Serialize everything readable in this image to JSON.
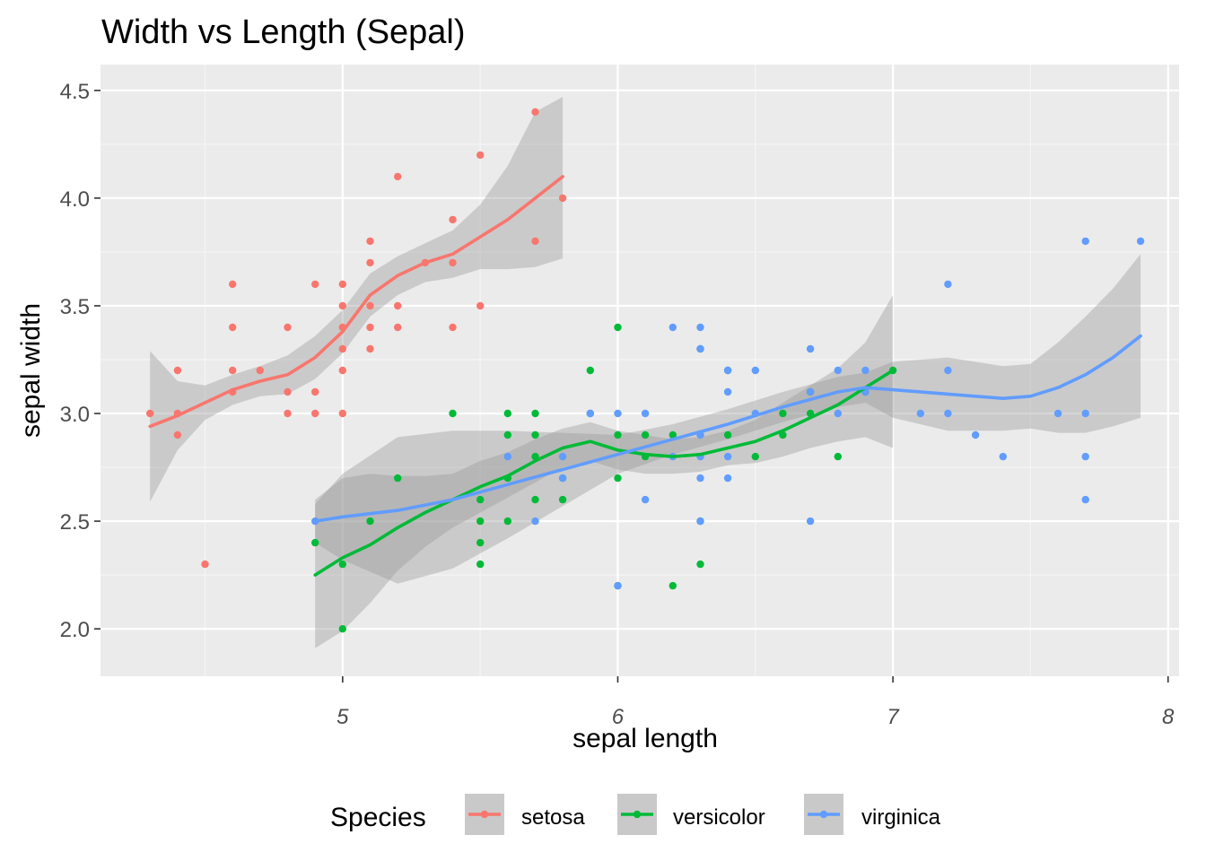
{
  "chart_data": {
    "type": "scatter",
    "title": "Width vs Length (Sepal)",
    "xlabel": "sepal length",
    "ylabel": "sepal width",
    "xlim": [
      4.12,
      8.04
    ],
    "ylim": [
      1.78,
      4.62
    ],
    "x_ticks": [
      5,
      6,
      7,
      8
    ],
    "x_tick_labels": [
      "5",
      "6",
      "7",
      "8"
    ],
    "y_ticks": [
      2.0,
      2.5,
      3.0,
      3.5,
      4.0,
      4.5
    ],
    "y_tick_labels": [
      "2.0",
      "2.5",
      "3.0",
      "3.5",
      "4.0",
      "4.5"
    ],
    "grid": true,
    "legend": {
      "title": "Species",
      "position": "bottom"
    },
    "series": [
      {
        "name": "setosa",
        "color": "#F8766D",
        "points": [
          [
            4.3,
            3.0
          ],
          [
            4.4,
            3.2
          ],
          [
            4.4,
            3.0
          ],
          [
            4.4,
            2.9
          ],
          [
            4.5,
            2.3
          ],
          [
            4.6,
            3.6
          ],
          [
            4.6,
            3.4
          ],
          [
            4.6,
            3.2
          ],
          [
            4.6,
            3.1
          ],
          [
            4.7,
            3.2
          ],
          [
            4.8,
            3.4
          ],
          [
            4.8,
            3.1
          ],
          [
            4.8,
            3.0
          ],
          [
            4.9,
            3.6
          ],
          [
            4.9,
            3.1
          ],
          [
            4.9,
            3.0
          ],
          [
            5.0,
            3.6
          ],
          [
            5.0,
            3.5
          ],
          [
            5.0,
            3.4
          ],
          [
            5.0,
            3.3
          ],
          [
            5.0,
            3.2
          ],
          [
            5.0,
            3.0
          ],
          [
            5.1,
            3.8
          ],
          [
            5.1,
            3.7
          ],
          [
            5.1,
            3.5
          ],
          [
            5.1,
            3.4
          ],
          [
            5.1,
            3.3
          ],
          [
            5.2,
            4.1
          ],
          [
            5.2,
            3.5
          ],
          [
            5.2,
            3.4
          ],
          [
            5.3,
            3.7
          ],
          [
            5.4,
            3.9
          ],
          [
            5.4,
            3.7
          ],
          [
            5.4,
            3.4
          ],
          [
            5.5,
            4.2
          ],
          [
            5.5,
            3.5
          ],
          [
            5.7,
            4.4
          ],
          [
            5.7,
            3.8
          ],
          [
            5.8,
            4.0
          ]
        ],
        "smooth": [
          [
            4.3,
            2.94
          ],
          [
            4.4,
            2.99
          ],
          [
            4.5,
            3.05
          ],
          [
            4.6,
            3.11
          ],
          [
            4.7,
            3.15
          ],
          [
            4.8,
            3.18
          ],
          [
            4.9,
            3.26
          ],
          [
            5.0,
            3.38
          ],
          [
            5.1,
            3.55
          ],
          [
            5.2,
            3.64
          ],
          [
            5.3,
            3.7
          ],
          [
            5.4,
            3.74
          ],
          [
            5.5,
            3.82
          ],
          [
            5.6,
            3.9
          ],
          [
            5.7,
            4.0
          ],
          [
            5.8,
            4.1
          ]
        ],
        "band_upper": [
          [
            4.3,
            3.29
          ],
          [
            4.4,
            3.15
          ],
          [
            4.5,
            3.13
          ],
          [
            4.6,
            3.18
          ],
          [
            4.7,
            3.22
          ],
          [
            4.8,
            3.27
          ],
          [
            4.9,
            3.36
          ],
          [
            5.0,
            3.48
          ],
          [
            5.1,
            3.65
          ],
          [
            5.2,
            3.73
          ],
          [
            5.3,
            3.79
          ],
          [
            5.4,
            3.85
          ],
          [
            5.5,
            3.97
          ],
          [
            5.6,
            4.15
          ],
          [
            5.7,
            4.4
          ],
          [
            5.8,
            4.47
          ]
        ],
        "band_lower": [
          [
            4.3,
            2.59
          ],
          [
            4.4,
            2.83
          ],
          [
            4.5,
            2.97
          ],
          [
            4.6,
            3.04
          ],
          [
            4.7,
            3.08
          ],
          [
            4.8,
            3.09
          ],
          [
            4.9,
            3.16
          ],
          [
            5.0,
            3.28
          ],
          [
            5.1,
            3.45
          ],
          [
            5.2,
            3.55
          ],
          [
            5.3,
            3.61
          ],
          [
            5.4,
            3.63
          ],
          [
            5.5,
            3.67
          ],
          [
            5.6,
            3.67
          ],
          [
            5.7,
            3.68
          ],
          [
            5.8,
            3.72
          ]
        ]
      },
      {
        "name": "versicolor",
        "color": "#00BA38",
        "points": [
          [
            4.9,
            2.4
          ],
          [
            5.0,
            2.3
          ],
          [
            5.0,
            2.0
          ],
          [
            5.1,
            2.5
          ],
          [
            5.2,
            2.7
          ],
          [
            5.4,
            3.0
          ],
          [
            5.5,
            2.6
          ],
          [
            5.5,
            2.5
          ],
          [
            5.5,
            2.4
          ],
          [
            5.5,
            2.3
          ],
          [
            5.6,
            3.0
          ],
          [
            5.6,
            2.9
          ],
          [
            5.6,
            2.7
          ],
          [
            5.6,
            2.5
          ],
          [
            5.7,
            3.0
          ],
          [
            5.7,
            2.9
          ],
          [
            5.7,
            2.8
          ],
          [
            5.7,
            2.6
          ],
          [
            5.8,
            2.7
          ],
          [
            5.8,
            2.6
          ],
          [
            5.9,
            3.2
          ],
          [
            5.9,
            3.0
          ],
          [
            6.0,
            3.4
          ],
          [
            6.0,
            2.9
          ],
          [
            6.0,
            2.7
          ],
          [
            6.0,
            2.2
          ],
          [
            6.1,
            2.9
          ],
          [
            6.1,
            2.8
          ],
          [
            6.2,
            2.9
          ],
          [
            6.2,
            2.2
          ],
          [
            6.3,
            2.5
          ],
          [
            6.3,
            2.3
          ],
          [
            6.3,
            3.3
          ],
          [
            6.4,
            3.2
          ],
          [
            6.4,
            2.9
          ],
          [
            6.5,
            2.8
          ],
          [
            6.6,
            3.0
          ],
          [
            6.6,
            2.9
          ],
          [
            6.7,
            3.1
          ],
          [
            6.7,
            3.0
          ],
          [
            6.8,
            2.8
          ],
          [
            6.9,
            3.1
          ],
          [
            7.0,
            3.2
          ]
        ],
        "smooth": [
          [
            4.9,
            2.25
          ],
          [
            5.0,
            2.33
          ],
          [
            5.1,
            2.39
          ],
          [
            5.2,
            2.47
          ],
          [
            5.3,
            2.54
          ],
          [
            5.4,
            2.6
          ],
          [
            5.5,
            2.66
          ],
          [
            5.6,
            2.71
          ],
          [
            5.7,
            2.78
          ],
          [
            5.8,
            2.84
          ],
          [
            5.9,
            2.87
          ],
          [
            6.0,
            2.83
          ],
          [
            6.1,
            2.81
          ],
          [
            6.2,
            2.8
          ],
          [
            6.3,
            2.81
          ],
          [
            6.4,
            2.84
          ],
          [
            6.5,
            2.87
          ],
          [
            6.6,
            2.92
          ],
          [
            6.7,
            2.98
          ],
          [
            6.8,
            3.04
          ],
          [
            6.9,
            3.12
          ],
          [
            7.0,
            3.2
          ]
        ],
        "band_upper": [
          [
            4.9,
            2.6
          ],
          [
            5.0,
            2.7
          ],
          [
            5.1,
            2.72
          ],
          [
            5.2,
            2.71
          ],
          [
            5.3,
            2.71
          ],
          [
            5.4,
            2.72
          ],
          [
            5.5,
            2.78
          ],
          [
            5.6,
            2.82
          ],
          [
            5.7,
            2.88
          ],
          [
            5.8,
            2.93
          ],
          [
            5.9,
            2.96
          ],
          [
            6.0,
            2.92
          ],
          [
            6.1,
            2.9
          ],
          [
            6.2,
            2.88
          ],
          [
            6.3,
            2.89
          ],
          [
            6.4,
            2.92
          ],
          [
            6.5,
            2.97
          ],
          [
            6.6,
            3.05
          ],
          [
            6.7,
            3.13
          ],
          [
            6.8,
            3.21
          ],
          [
            6.9,
            3.33
          ],
          [
            7.0,
            3.55
          ]
        ],
        "band_lower": [
          [
            4.9,
            1.91
          ],
          [
            5.0,
            1.99
          ],
          [
            5.1,
            2.12
          ],
          [
            5.2,
            2.27
          ],
          [
            5.3,
            2.38
          ],
          [
            5.4,
            2.47
          ],
          [
            5.5,
            2.54
          ],
          [
            5.6,
            2.61
          ],
          [
            5.7,
            2.68
          ],
          [
            5.8,
            2.75
          ],
          [
            5.9,
            2.78
          ],
          [
            6.0,
            2.74
          ],
          [
            6.1,
            2.72
          ],
          [
            6.2,
            2.72
          ],
          [
            6.3,
            2.73
          ],
          [
            6.4,
            2.76
          ],
          [
            6.5,
            2.77
          ],
          [
            6.6,
            2.8
          ],
          [
            6.7,
            2.84
          ],
          [
            6.8,
            2.87
          ],
          [
            6.9,
            2.89
          ],
          [
            7.0,
            2.84
          ]
        ]
      },
      {
        "name": "virginica",
        "color": "#619CFF",
        "points": [
          [
            4.9,
            2.5
          ],
          [
            5.6,
            2.8
          ],
          [
            5.7,
            2.5
          ],
          [
            5.8,
            2.8
          ],
          [
            5.8,
            2.7
          ],
          [
            5.9,
            3.0
          ],
          [
            6.0,
            3.0
          ],
          [
            6.0,
            2.2
          ],
          [
            6.1,
            3.0
          ],
          [
            6.1,
            2.6
          ],
          [
            6.2,
            3.4
          ],
          [
            6.2,
            2.8
          ],
          [
            6.3,
            3.4
          ],
          [
            6.3,
            3.3
          ],
          [
            6.3,
            2.9
          ],
          [
            6.3,
            2.8
          ],
          [
            6.3,
            2.7
          ],
          [
            6.3,
            2.5
          ],
          [
            6.4,
            3.2
          ],
          [
            6.4,
            3.1
          ],
          [
            6.4,
            2.8
          ],
          [
            6.4,
            2.7
          ],
          [
            6.5,
            3.2
          ],
          [
            6.5,
            3.0
          ],
          [
            6.7,
            3.3
          ],
          [
            6.7,
            3.1
          ],
          [
            6.7,
            2.5
          ],
          [
            6.8,
            3.2
          ],
          [
            6.8,
            3.0
          ],
          [
            6.9,
            3.2
          ],
          [
            6.9,
            3.1
          ],
          [
            7.1,
            3.0
          ],
          [
            7.2,
            3.6
          ],
          [
            7.2,
            3.2
          ],
          [
            7.2,
            3.0
          ],
          [
            7.3,
            2.9
          ],
          [
            7.4,
            2.8
          ],
          [
            7.6,
            3.0
          ],
          [
            7.7,
            3.8
          ],
          [
            7.7,
            3.0
          ],
          [
            7.7,
            2.8
          ],
          [
            7.7,
            2.6
          ],
          [
            7.9,
            3.8
          ]
        ],
        "smooth": [
          [
            4.9,
            2.5
          ],
          [
            5.0,
            2.52
          ],
          [
            5.2,
            2.55
          ],
          [
            5.4,
            2.6
          ],
          [
            5.6,
            2.67
          ],
          [
            5.8,
            2.74
          ],
          [
            6.0,
            2.81
          ],
          [
            6.2,
            2.88
          ],
          [
            6.4,
            2.95
          ],
          [
            6.6,
            3.03
          ],
          [
            6.8,
            3.1
          ],
          [
            6.9,
            3.12
          ],
          [
            7.0,
            3.11
          ],
          [
            7.2,
            3.09
          ],
          [
            7.4,
            3.07
          ],
          [
            7.5,
            3.08
          ],
          [
            7.6,
            3.12
          ],
          [
            7.7,
            3.18
          ],
          [
            7.8,
            3.26
          ],
          [
            7.9,
            3.36
          ]
        ],
        "band_upper": [
          [
            4.9,
            2.58
          ],
          [
            5.0,
            2.72
          ],
          [
            5.2,
            2.89
          ],
          [
            5.4,
            2.92
          ],
          [
            5.6,
            2.92
          ],
          [
            5.8,
            2.91
          ],
          [
            6.0,
            2.9
          ],
          [
            6.2,
            2.95
          ],
          [
            6.4,
            3.02
          ],
          [
            6.6,
            3.1
          ],
          [
            6.8,
            3.17
          ],
          [
            6.9,
            3.19
          ],
          [
            7.0,
            3.24
          ],
          [
            7.2,
            3.26
          ],
          [
            7.4,
            3.22
          ],
          [
            7.5,
            3.23
          ],
          [
            7.6,
            3.33
          ],
          [
            7.7,
            3.45
          ],
          [
            7.8,
            3.58
          ],
          [
            7.9,
            3.74
          ]
        ],
        "band_lower": [
          [
            4.9,
            2.4
          ],
          [
            5.0,
            2.32
          ],
          [
            5.2,
            2.21
          ],
          [
            5.4,
            2.28
          ],
          [
            5.6,
            2.42
          ],
          [
            5.8,
            2.57
          ],
          [
            6.0,
            2.72
          ],
          [
            6.2,
            2.81
          ],
          [
            6.4,
            2.88
          ],
          [
            6.6,
            2.96
          ],
          [
            6.8,
            3.03
          ],
          [
            6.9,
            3.05
          ],
          [
            7.0,
            2.98
          ],
          [
            7.2,
            2.92
          ],
          [
            7.4,
            2.92
          ],
          [
            7.5,
            2.93
          ],
          [
            7.6,
            2.91
          ],
          [
            7.7,
            2.91
          ],
          [
            7.8,
            2.94
          ],
          [
            7.9,
            2.98
          ]
        ]
      }
    ]
  }
}
